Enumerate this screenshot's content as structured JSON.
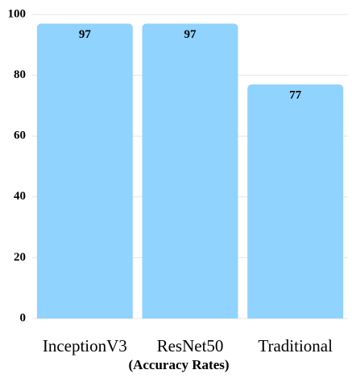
{
  "chart_data": {
    "type": "bar",
    "x_label": "(Accuracy Rates)",
    "categories": [
      "InceptionV3",
      "ResNet50",
      "Traditional"
    ],
    "values": [
      97,
      97,
      77
    ],
    "color": "#8fd3fe",
    "ylim": [
      0,
      100
    ],
    "yticks": [
      0,
      20,
      40,
      60,
      80,
      100
    ],
    "grid": true
  }
}
